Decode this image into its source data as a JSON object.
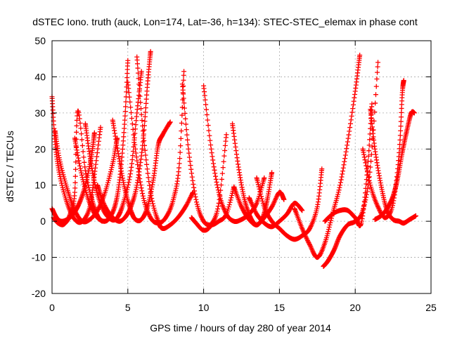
{
  "chart_data": {
    "type": "scatter",
    "title": "dSTEC Iono. truth (auck, Lon=174, Lat=-36, h=134): STEC-STEC_elemax in phase cont",
    "xlabel": "GPS time / hours of day 280 of year 2014",
    "ylabel": "dSTEC  / TECUs",
    "xlim": [
      0,
      25
    ],
    "ylim": [
      -20,
      50
    ],
    "xticks": [
      0,
      5,
      10,
      15,
      20,
      25
    ],
    "yticks": [
      -20,
      -10,
      0,
      10,
      20,
      30,
      40,
      50
    ],
    "grid": true,
    "legend": "none",
    "marker": "+",
    "color": "#ff0000",
    "series": [
      {
        "x": [
          0.0,
          0.2,
          0.5,
          1.0,
          1.5,
          2.0,
          2.5,
          2.8,
          3.2
        ],
        "y": [
          34.5,
          22,
          13,
          5,
          0.5,
          0,
          4,
          13,
          26
        ]
      },
      {
        "x": [
          0.0,
          0.3,
          0.6,
          1.0,
          1.4,
          1.8,
          2.2,
          2.6,
          2.8
        ],
        "y": [
          3.5,
          1,
          0,
          0.5,
          2,
          5,
          10,
          18,
          24.5
        ]
      },
      {
        "x": [
          0.2,
          0.5,
          1.0,
          1.5,
          2.0,
          2.5,
          3.0,
          3.5,
          4.0,
          4.3
        ],
        "y": [
          25,
          17,
          9,
          3,
          0,
          0.5,
          3,
          8,
          16,
          23
        ]
      },
      {
        "x": [
          0.1,
          0.4,
          0.8,
          1.2,
          1.5,
          1.7,
          2.2,
          2.7,
          3.0,
          3.3
        ],
        "y": [
          1,
          -0.5,
          -0.8,
          2,
          8,
          30.5,
          14,
          5,
          1.5,
          0
        ]
      },
      {
        "x": [
          1.5,
          1.9,
          2.4,
          2.9,
          3.4,
          3.8,
          4.2,
          4.5,
          4.8,
          5.0
        ],
        "y": [
          23,
          14,
          6,
          1.5,
          0,
          1,
          5,
          13,
          28,
          44.5
        ]
      },
      {
        "x": [
          2.2,
          2.5,
          2.9,
          3.4,
          3.9,
          4.3,
          4.7,
          5.2,
          5.6,
          5.9
        ],
        "y": [
          27,
          18,
          9,
          3,
          0.5,
          1,
          5,
          14,
          30,
          41.5
        ]
      },
      {
        "x": [
          3.0,
          3.4,
          3.9,
          4.4,
          4.8,
          5.2,
          5.6,
          6.0,
          6.3,
          6.5
        ],
        "y": [
          10,
          5,
          1.5,
          0,
          1,
          4,
          10,
          22,
          38,
          47
        ]
      },
      {
        "x": [
          4.0,
          4.4,
          4.8,
          5.2,
          5.5,
          5.9,
          6.3,
          6.7,
          7.0,
          7.3,
          7.8
        ],
        "y": [
          28,
          18,
          9,
          3,
          0.5,
          0.5,
          4,
          12,
          21,
          24,
          27.5
        ]
      },
      {
        "x": [
          5.0,
          5.5,
          6.0,
          6.5,
          7.0,
          7.5,
          8.0,
          8.4,
          8.7
        ],
        "y": [
          38.5,
          20,
          7,
          1,
          -0.5,
          1,
          6,
          16,
          41.5
        ]
      },
      {
        "x": [
          5.6,
          6.0,
          6.5,
          7.0,
          7.3,
          7.8,
          8.3,
          8.8,
          9.3
        ],
        "y": [
          45.5,
          25,
          8,
          0,
          -2,
          -1,
          1,
          4,
          8
        ]
      },
      {
        "x": [
          8.6,
          9.0,
          9.5,
          10.0,
          10.5,
          11.0,
          11.5,
          12.0
        ],
        "y": [
          38,
          20,
          6,
          0,
          -1,
          0,
          2,
          9.5
        ]
      },
      {
        "x": [
          9.2,
          9.5,
          10.0,
          10.5,
          11.0,
          11.5
        ],
        "y": [
          1,
          -0.5,
          -2.5,
          -1,
          5,
          24
        ]
      },
      {
        "x": [
          10.0,
          10.5,
          11.0,
          11.5,
          12.0,
          12.5,
          13.0,
          13.5,
          14.0
        ],
        "y": [
          37.5,
          20,
          8,
          2,
          0,
          0.5,
          2,
          5,
          12
        ]
      },
      {
        "x": [
          11.9,
          12.3,
          12.7,
          13.1,
          13.5,
          13.9,
          14.2,
          14.5
        ],
        "y": [
          27,
          15,
          6,
          1,
          -1,
          1,
          6,
          13.5
        ]
      },
      {
        "x": [
          12.0,
          12.5,
          13.0,
          13.5,
          14.0,
          14.5,
          15.0,
          15.3
        ],
        "y": [
          9.5,
          4,
          0.5,
          -1,
          1,
          4,
          8,
          6
        ]
      },
      {
        "x": [
          13.0,
          13.5,
          14.0,
          14.5,
          15.0,
          15.5,
          16.0,
          16.5
        ],
        "y": [
          6.5,
          2,
          -0.5,
          -1.5,
          0,
          2,
          5,
          3
        ]
      },
      {
        "x": [
          13.5,
          14.0,
          14.5,
          15.0,
          15.5,
          16.0,
          16.5,
          17.0,
          17.5,
          17.8
        ],
        "y": [
          12,
          4,
          0,
          -2,
          -4,
          -5,
          -4,
          -2,
          4,
          14.5
        ]
      },
      {
        "x": [
          16.0,
          16.5,
          17.0,
          17.5,
          18.0,
          18.5,
          19.0,
          19.5,
          20.0,
          20.3
        ],
        "y": [
          3.5,
          -2,
          -6.5,
          -10,
          -6,
          2,
          10,
          22,
          36,
          46
        ]
      },
      {
        "x": [
          17.9,
          18.2,
          18.6,
          19.0,
          19.5,
          20.0,
          20.5,
          21.0,
          21.5
        ],
        "y": [
          -12.5,
          -11,
          -8,
          -4,
          -1,
          0,
          3,
          15,
          44
        ]
      },
      {
        "x": [
          18.0,
          18.5,
          19.0,
          19.5,
          20.0,
          20.4,
          20.8,
          21.1
        ],
        "y": [
          0,
          2,
          3,
          3,
          1,
          -0.5,
          14,
          32.5
        ]
      },
      {
        "x": [
          21.0,
          21.3,
          21.7,
          22.1,
          22.5,
          22.9,
          23.2,
          23.6,
          24.0
        ],
        "y": [
          31,
          20,
          10,
          3,
          0.5,
          0,
          -0.5,
          0.5,
          1.5
        ]
      },
      {
        "x": [
          21.3,
          21.7,
          22.1,
          22.5,
          22.8,
          23.1,
          23.4,
          23.7,
          23.9
        ],
        "y": [
          0.5,
          1.5,
          3.5,
          7,
          12,
          19,
          25,
          30,
          30
        ]
      },
      {
        "x": [
          20.5,
          21.0,
          21.5,
          22.0,
          22.5,
          22.9,
          23.1,
          23.2
        ],
        "y": [
          20,
          10,
          4,
          1,
          5,
          19,
          35,
          39
        ]
      }
    ]
  }
}
